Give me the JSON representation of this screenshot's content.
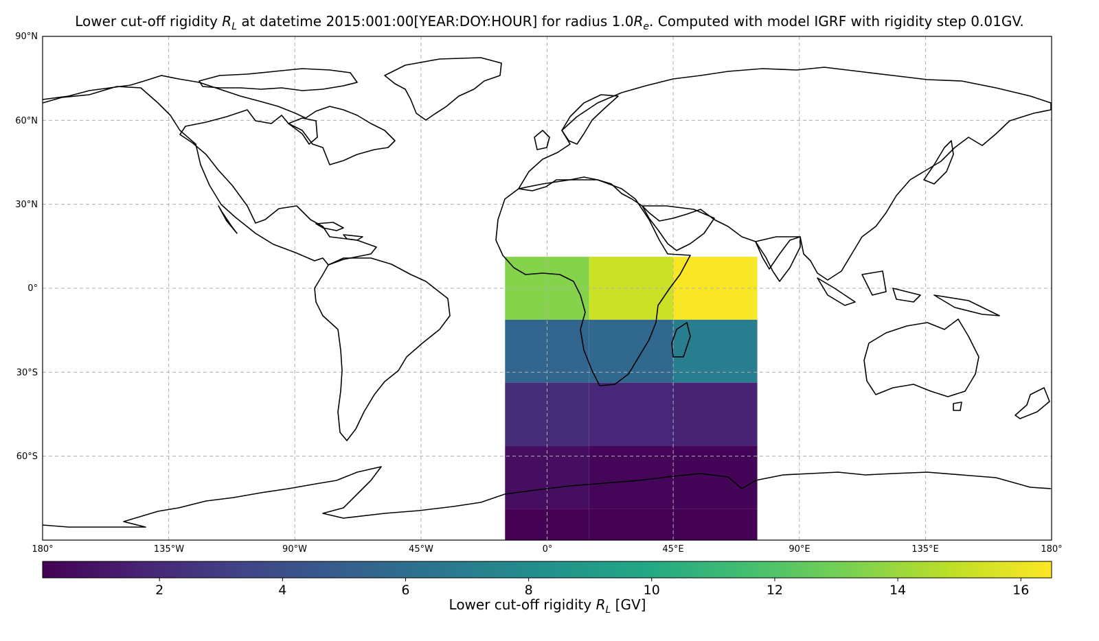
{
  "title": {
    "before": "Lower cut-off rigidity ",
    "sym": "R",
    "sub": "L",
    "middle": " at datetime 2015:001:00[YEAR:DOY:HOUR] for radius 1.0",
    "sym2": "R",
    "sub2": "e",
    "after": ". Computed with model IGRF with rigidity step 0.01GV."
  },
  "lat_ticks": [
    "90°N",
    "60°N",
    "30°N",
    "0°",
    "30°S",
    "60°S"
  ],
  "lon_ticks": [
    "180°",
    "135°W",
    "90°W",
    "45°W",
    "0°",
    "45°E",
    "90°E",
    "135°E",
    "180°"
  ],
  "colorbar": {
    "ticks": [
      "2",
      "4",
      "6",
      "8",
      "10",
      "12",
      "14",
      "16"
    ],
    "label_before": "Lower cut-off rigidity ",
    "label_sym": "R",
    "label_sub": "L",
    "label_after": " [GV]",
    "colormap": "viridis"
  },
  "chart_data": {
    "type": "heatmap",
    "projection": "PlateCarree",
    "xlim": [
      -180,
      180
    ],
    "ylim": [
      -90,
      90
    ],
    "vmin": 0.1,
    "vmax": 16.5,
    "x_edges": [
      -15,
      15,
      45,
      75
    ],
    "y_edges": [
      11.25,
      -11.25,
      -33.75,
      -56.25,
      -78.75,
      -90
    ],
    "values": [
      [
        13.5,
        15.2,
        16.4
      ],
      [
        5.4,
        5.6,
        7.0
      ],
      [
        2.2,
        1.9,
        1.7
      ],
      [
        0.7,
        0.35,
        0.3
      ],
      [
        0.1,
        0.1,
        0.1
      ]
    ],
    "grid": true,
    "colors": {
      "gridline": "#b0b0b0",
      "coastline": "#000000"
    }
  }
}
